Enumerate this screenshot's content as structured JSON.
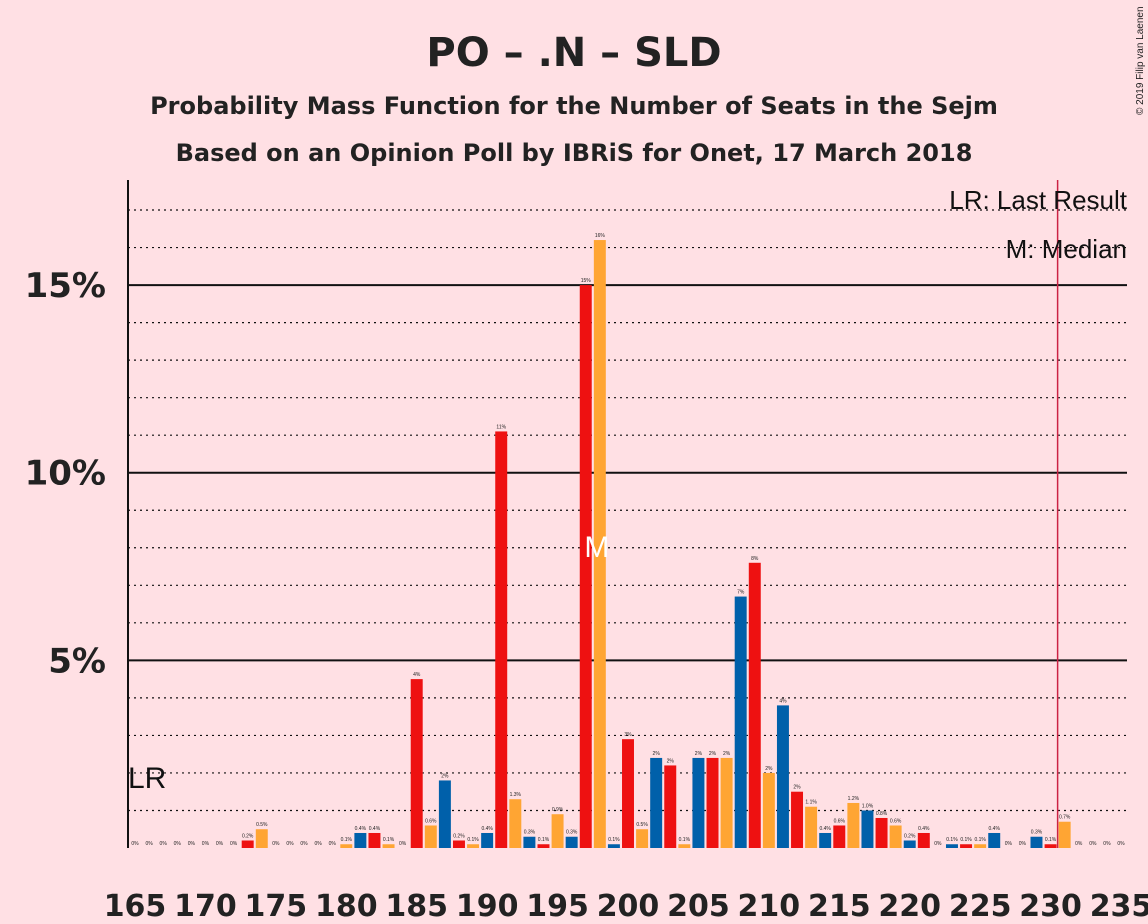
{
  "chart_data": {
    "type": "bar",
    "title": "PO – .N – SLD",
    "subtitle": "Probability Mass Function for the Number of Seats in the Sejm",
    "subtitle2": "Based on an Opinion Poll by IBRiS for Onet, 17 March 2018",
    "copyright": "© 2019 Filip van Laenen",
    "legend": [
      "LR: Last Result",
      "M: Median"
    ],
    "lr_label": "LR",
    "median_label": "M",
    "last_result": 230.5,
    "median": 198,
    "ylim": [
      0,
      17.8
    ],
    "xlim": [
      165,
      235
    ],
    "yticks": [
      5,
      10,
      15
    ],
    "ytick_labels": [
      "5%",
      "10%",
      "15%"
    ],
    "xticks": [
      165,
      170,
      175,
      180,
      185,
      190,
      195,
      200,
      205,
      210,
      215,
      220,
      225,
      230,
      235
    ],
    "colors": {
      "red": "#ee1111",
      "orange": "#ffa533",
      "blue": "#0060aa",
      "lr_line": "#cc2244",
      "median_text": "#ffffff"
    },
    "bars": [
      {
        "seats": 165,
        "value": 0.0,
        "label": "0%",
        "color": "red"
      },
      {
        "seats": 166,
        "value": 0.0,
        "label": "0%",
        "color": "orange"
      },
      {
        "seats": 167,
        "value": 0.0,
        "label": "0%",
        "color": "blue"
      },
      {
        "seats": 168,
        "value": 0.0,
        "label": "0%",
        "color": "red"
      },
      {
        "seats": 169,
        "value": 0.0,
        "label": "0%",
        "color": "orange"
      },
      {
        "seats": 170,
        "value": 0.0,
        "label": "0%",
        "color": "blue"
      },
      {
        "seats": 171,
        "value": 0.0,
        "label": "0%",
        "color": "red"
      },
      {
        "seats": 172,
        "value": 0.0,
        "label": "0%",
        "color": "orange"
      },
      {
        "seats": 173,
        "value": 0.2,
        "label": "0.2%",
        "color": "red"
      },
      {
        "seats": 174,
        "value": 0.5,
        "label": "0.5%",
        "color": "orange"
      },
      {
        "seats": 175,
        "value": 0.0,
        "label": "0%",
        "color": "blue"
      },
      {
        "seats": 176,
        "value": 0.0,
        "label": "0%",
        "color": "red"
      },
      {
        "seats": 177,
        "value": 0.0,
        "label": "0%",
        "color": "orange"
      },
      {
        "seats": 178,
        "value": 0.0,
        "label": "0%",
        "color": "blue"
      },
      {
        "seats": 179,
        "value": 0.0,
        "label": "0%",
        "color": "red"
      },
      {
        "seats": 180,
        "value": 0.1,
        "label": "0.1%",
        "color": "orange"
      },
      {
        "seats": 181,
        "value": 0.4,
        "label": "0.4%",
        "color": "blue"
      },
      {
        "seats": 182,
        "value": 0.4,
        "label": "0.4%",
        "color": "red"
      },
      {
        "seats": 183,
        "value": 0.1,
        "label": "0.1%",
        "color": "orange"
      },
      {
        "seats": 184,
        "value": 0.0,
        "label": "0%",
        "color": "blue"
      },
      {
        "seats": 185,
        "value": 4.5,
        "label": "4%",
        "color": "red"
      },
      {
        "seats": 186,
        "value": 0.6,
        "label": "0.6%",
        "color": "orange"
      },
      {
        "seats": 187,
        "value": 1.8,
        "label": "2%",
        "color": "blue"
      },
      {
        "seats": 188,
        "value": 0.2,
        "label": "0.2%",
        "color": "red"
      },
      {
        "seats": 189,
        "value": 0.1,
        "label": "0.1%",
        "color": "orange"
      },
      {
        "seats": 190,
        "value": 0.4,
        "label": "0.4%",
        "color": "blue"
      },
      {
        "seats": 191,
        "value": 11.1,
        "label": "11%",
        "color": "red"
      },
      {
        "seats": 192,
        "value": 1.3,
        "label": "1.3%",
        "color": "orange"
      },
      {
        "seats": 193,
        "value": 0.3,
        "label": "0.3%",
        "color": "blue"
      },
      {
        "seats": 194,
        "value": 0.1,
        "label": "0.1%",
        "color": "red"
      },
      {
        "seats": 195,
        "value": 0.9,
        "label": "0.9%",
        "color": "orange"
      },
      {
        "seats": 196,
        "value": 0.3,
        "label": "0.3%",
        "color": "blue"
      },
      {
        "seats": 197,
        "value": 15.0,
        "label": "15%",
        "color": "red"
      },
      {
        "seats": 198,
        "value": 16.2,
        "label": "16%",
        "color": "orange"
      },
      {
        "seats": 199,
        "value": 0.1,
        "label": "0.1%",
        "color": "blue"
      },
      {
        "seats": 200,
        "value": 2.9,
        "label": "3%",
        "color": "red"
      },
      {
        "seats": 201,
        "value": 0.5,
        "label": "0.5%",
        "color": "orange"
      },
      {
        "seats": 202,
        "value": 2.4,
        "label": "2%",
        "color": "blue"
      },
      {
        "seats": 203,
        "value": 2.2,
        "label": "2%",
        "color": "red"
      },
      {
        "seats": 204,
        "value": 0.1,
        "label": "0.1%",
        "color": "orange"
      },
      {
        "seats": 205,
        "value": 2.4,
        "label": "2%",
        "color": "blue"
      },
      {
        "seats": 206,
        "value": 2.4,
        "label": "2%",
        "color": "red"
      },
      {
        "seats": 207,
        "value": 2.4,
        "label": "2%",
        "color": "orange"
      },
      {
        "seats": 208,
        "value": 6.7,
        "label": "7%",
        "color": "blue"
      },
      {
        "seats": 209,
        "value": 7.6,
        "label": "8%",
        "color": "red"
      },
      {
        "seats": 210,
        "value": 2.0,
        "label": "2%",
        "color": "orange"
      },
      {
        "seats": 211,
        "value": 3.8,
        "label": "4%",
        "color": "blue"
      },
      {
        "seats": 212,
        "value": 1.5,
        "label": "2%",
        "color": "red"
      },
      {
        "seats": 213,
        "value": 1.1,
        "label": "1.1%",
        "color": "orange"
      },
      {
        "seats": 214,
        "value": 0.4,
        "label": "0.4%",
        "color": "blue"
      },
      {
        "seats": 215,
        "value": 0.6,
        "label": "0.6%",
        "color": "red"
      },
      {
        "seats": 216,
        "value": 1.2,
        "label": "1.2%",
        "color": "orange"
      },
      {
        "seats": 217,
        "value": 1.0,
        "label": "1.0%",
        "color": "blue"
      },
      {
        "seats": 218,
        "value": 0.8,
        "label": "0.8%",
        "color": "red"
      },
      {
        "seats": 219,
        "value": 0.6,
        "label": "0.6%",
        "color": "orange"
      },
      {
        "seats": 220,
        "value": 0.2,
        "label": "0.2%",
        "color": "blue"
      },
      {
        "seats": 221,
        "value": 0.4,
        "label": "0.4%",
        "color": "red"
      },
      {
        "seats": 222,
        "value": 0.0,
        "label": "0%",
        "color": "orange"
      },
      {
        "seats": 223,
        "value": 0.1,
        "label": "0.1%",
        "color": "blue"
      },
      {
        "seats": 224,
        "value": 0.1,
        "label": "0.1%",
        "color": "red"
      },
      {
        "seats": 225,
        "value": 0.1,
        "label": "0.1%",
        "color": "orange"
      },
      {
        "seats": 226,
        "value": 0.4,
        "label": "0.4%",
        "color": "blue"
      },
      {
        "seats": 227,
        "value": 0.0,
        "label": "0%",
        "color": "red"
      },
      {
        "seats": 228,
        "value": 0.0,
        "label": "0%",
        "color": "orange"
      },
      {
        "seats": 229,
        "value": 0.3,
        "label": "0.3%",
        "color": "blue"
      },
      {
        "seats": 230,
        "value": 0.1,
        "label": "0.1%",
        "color": "red"
      },
      {
        "seats": 231,
        "value": 0.7,
        "label": "0.7%",
        "color": "orange"
      },
      {
        "seats": 232,
        "value": 0.0,
        "label": "0%",
        "color": "blue"
      },
      {
        "seats": 233,
        "value": 0.0,
        "label": "0%",
        "color": "red"
      },
      {
        "seats": 234,
        "value": 0.0,
        "label": "0%",
        "color": "orange"
      },
      {
        "seats": 235,
        "value": 0.0,
        "label": "0%",
        "color": "blue"
      }
    ]
  }
}
